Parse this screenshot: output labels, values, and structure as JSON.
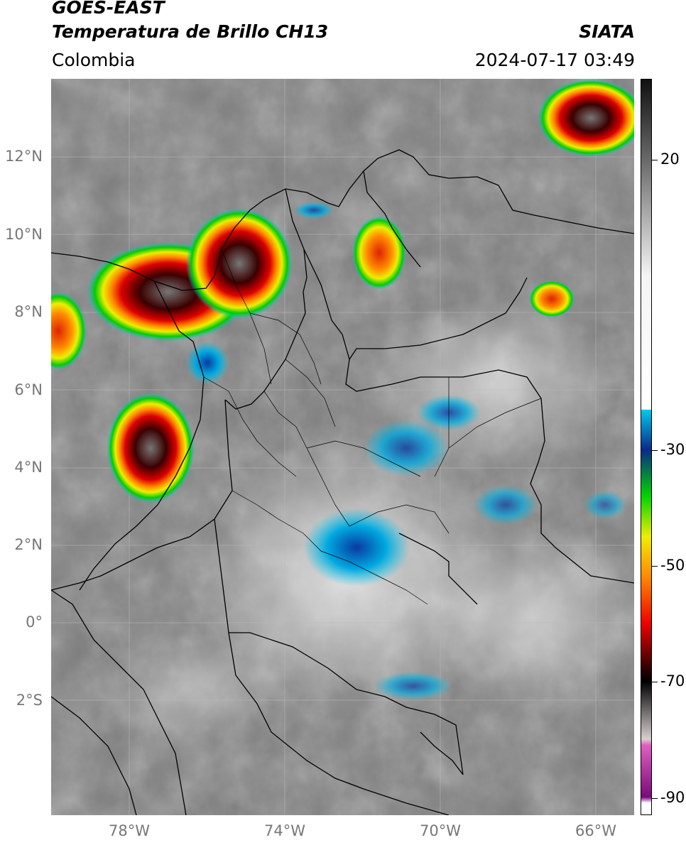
{
  "header": {
    "satellite": "GOES-EAST",
    "product": "Temperatura de Brillo CH13",
    "region": "Colombia",
    "organization": "SIATA",
    "datetime": "2024-07-17 03:49"
  },
  "map": {
    "lat_labels": [
      "12°N",
      "10°N",
      "8°N",
      "6°N",
      "4°N",
      "2°N",
      "0°",
      "2°S"
    ],
    "lon_labels": [
      "78°W",
      "74°W",
      "70°W",
      "66°W"
    ],
    "extent": {
      "lon_min": -80,
      "lon_max": -65,
      "lat_min": -5,
      "lat_max": 14
    }
  },
  "colorbar": {
    "ticks": [
      "20",
      "-30",
      "-50",
      "-70",
      "-90"
    ],
    "tick_values": [
      20,
      -30,
      -50,
      -70,
      -90
    ],
    "range": [
      -93,
      34
    ],
    "stops": [
      {
        "v": 34,
        "c": "#111111"
      },
      {
        "v": 20,
        "c": "#6a6a6a"
      },
      {
        "v": 0,
        "c": "#f4f4f4"
      },
      {
        "v": -23,
        "c": "#ffffff"
      },
      {
        "v": -23.1,
        "c": "#00c8ee"
      },
      {
        "v": -30,
        "c": "#0a2a8a"
      },
      {
        "v": -38,
        "c": "#00d400"
      },
      {
        "v": -45,
        "c": "#eeee00"
      },
      {
        "v": -52,
        "c": "#ff8800"
      },
      {
        "v": -60,
        "c": "#ee0000"
      },
      {
        "v": -68,
        "c": "#2a0000"
      },
      {
        "v": -70,
        "c": "#000000"
      },
      {
        "v": -80,
        "c": "#d8d0d0"
      },
      {
        "v": -81,
        "c": "#e060c0"
      },
      {
        "v": -90,
        "c": "#7a0a7a"
      },
      {
        "v": -91,
        "c": "#ffffff"
      },
      {
        "v": -93,
        "c": "#ffffff"
      }
    ]
  }
}
